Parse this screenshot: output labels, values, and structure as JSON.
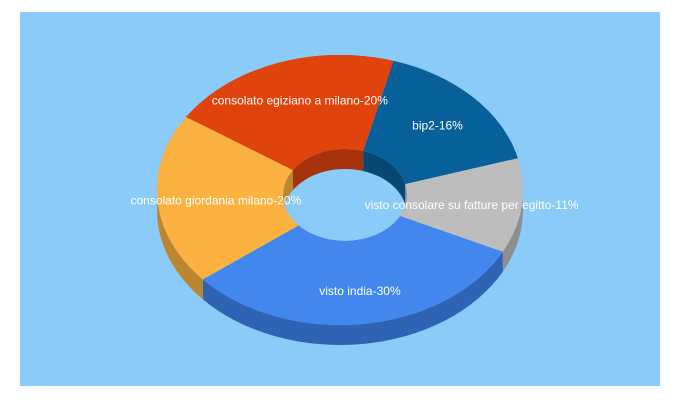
{
  "chart_data": {
    "type": "pie3d",
    "value_labels": [
      "bip2-16%",
      "visto consolare su fatture per egitto-11%",
      "visto india-30%",
      "consolato giordania milano-20%",
      "consolato egiziano a milano-20%"
    ],
    "values": [
      16,
      11,
      30,
      20,
      20
    ],
    "colors": [
      "#08609a",
      "#bdbdbd",
      "#4287ee",
      "#fbb241",
      "#e0430c"
    ],
    "side_colors": [
      "#064872",
      "#8e8e8e",
      "#2f63b3",
      "#bc8630",
      "#a83209"
    ]
  }
}
